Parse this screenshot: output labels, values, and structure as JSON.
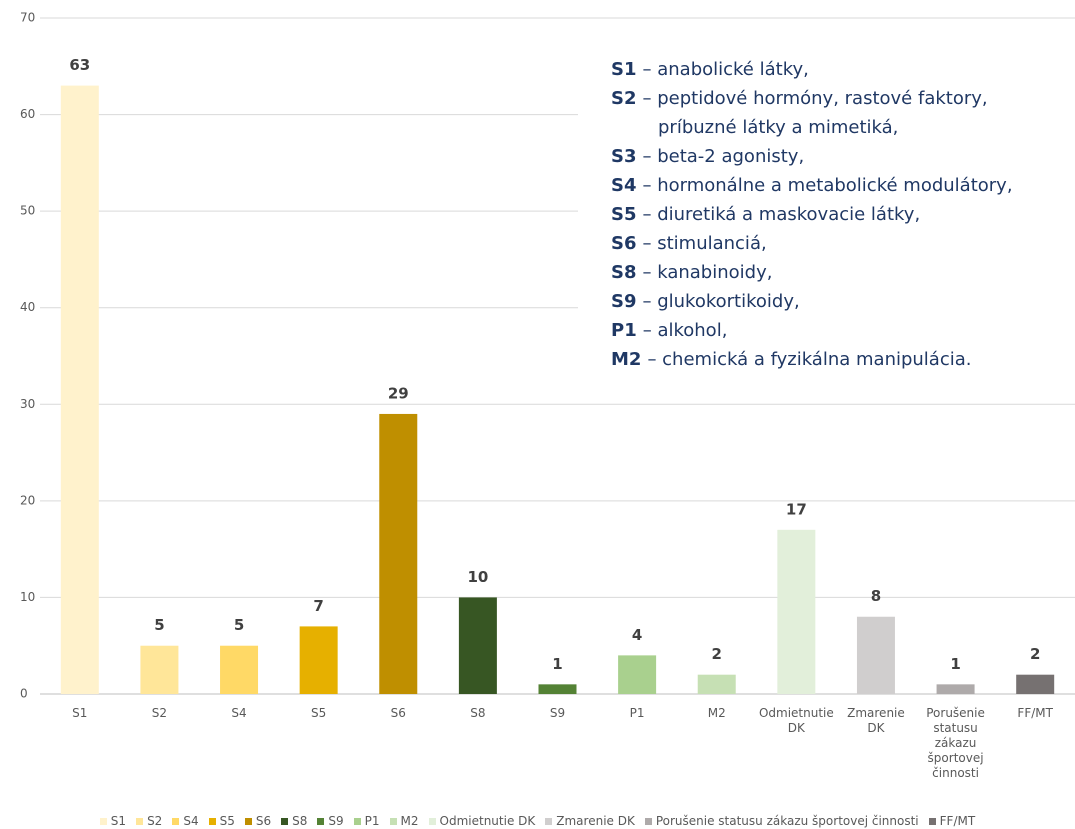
{
  "chart_data": {
    "type": "bar",
    "categories": [
      "S1",
      "S2",
      "S4",
      "S5",
      "S6",
      "S8",
      "S9",
      "P1",
      "M2",
      "Odmietnutie DK",
      "Zmarenie DK",
      "Porušenie statusu zákazu športovej činnosti",
      "FF/MT"
    ],
    "values": [
      63,
      5,
      5,
      7,
      29,
      10,
      1,
      4,
      2,
      17,
      8,
      1,
      2
    ],
    "colors": [
      "#fff2cc",
      "#ffe699",
      "#ffd966",
      "#e6b000",
      "#bf8f00",
      "#375623",
      "#548235",
      "#a9d08e",
      "#c6e0b4",
      "#e2efda",
      "#d0cece",
      "#aeaaaa",
      "#767171"
    ],
    "ylim": [
      0,
      70
    ],
    "yticks": [
      0,
      10,
      20,
      30,
      40,
      50,
      60,
      70
    ],
    "grid": true,
    "legend": "bottom",
    "annotations": [
      {
        "code": "S1",
        "text": "– anabolické látky,"
      },
      {
        "code": "S2",
        "text": "– peptidové hormóny, rastové faktory,",
        "continuation": "príbuzné látky a mimetiká,"
      },
      {
        "code": "S3",
        "text": "– beta-2 agonisty,"
      },
      {
        "code": "S4",
        "text": "– hormonálne a metabolické modulátory,"
      },
      {
        "code": "S5",
        "text": "– diuretiká a maskovacie látky,"
      },
      {
        "code": "S6",
        "text": "– stimulanciá,"
      },
      {
        "code": "S8",
        "text": "– kanabinoidy,"
      },
      {
        "code": "S9",
        "text": "– glukokortikoidy,"
      },
      {
        "code": "P1",
        "text": "– alkohol,"
      },
      {
        "code": "M2",
        "text": "– chemická a fyzikálna manipulácia."
      }
    ]
  }
}
